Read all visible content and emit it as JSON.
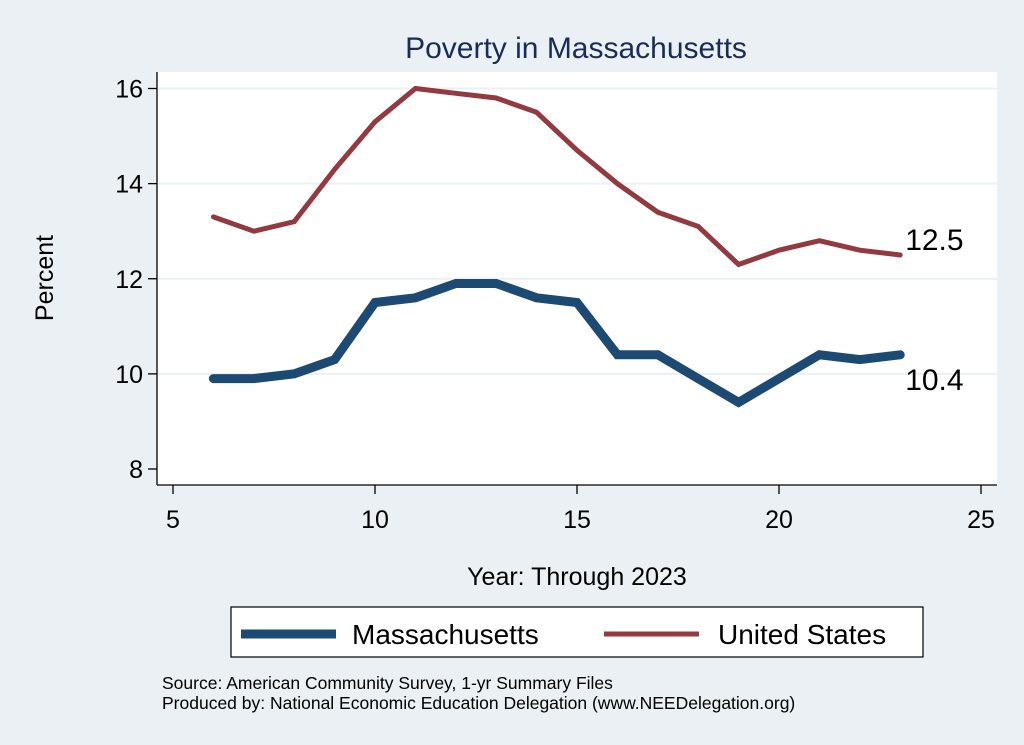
{
  "chart_data": {
    "type": "line",
    "title": "Poverty in Massachusetts",
    "xlabel": "Year: Through 2023",
    "ylabel": "Percent",
    "xlim": [
      5,
      25
    ],
    "ylim": [
      8,
      16
    ],
    "xticks": [
      5,
      10,
      15,
      20,
      25
    ],
    "yticks": [
      8,
      10,
      12,
      14,
      16
    ],
    "grid": true,
    "legend_position": "bottom",
    "x": [
      6,
      7,
      8,
      9,
      10,
      11,
      12,
      13,
      14,
      15,
      16,
      17,
      18,
      19,
      20,
      21,
      22,
      23
    ],
    "series": [
      {
        "name": "Massachusetts",
        "color": "#1c4a73",
        "values": [
          9.9,
          9.9,
          10.0,
          10.3,
          11.5,
          11.6,
          11.9,
          11.9,
          11.6,
          11.5,
          10.4,
          10.4,
          9.9,
          9.4,
          9.9,
          10.4,
          10.3,
          10.4
        ],
        "end_label": "10.4"
      },
      {
        "name": "United States",
        "color": "#923a40",
        "values": [
          13.3,
          13.0,
          13.2,
          14.3,
          15.3,
          16.0,
          15.9,
          15.8,
          15.5,
          14.7,
          14.0,
          13.4,
          13.1,
          12.3,
          12.6,
          12.8,
          12.6,
          12.5
        ],
        "end_label": "12.5"
      }
    ],
    "notes": [
      "Source: American Community Survey, 1-yr Summary Files",
      "Produced by: National Economic Education Delegation (www.NEEDelegation.org)"
    ]
  }
}
